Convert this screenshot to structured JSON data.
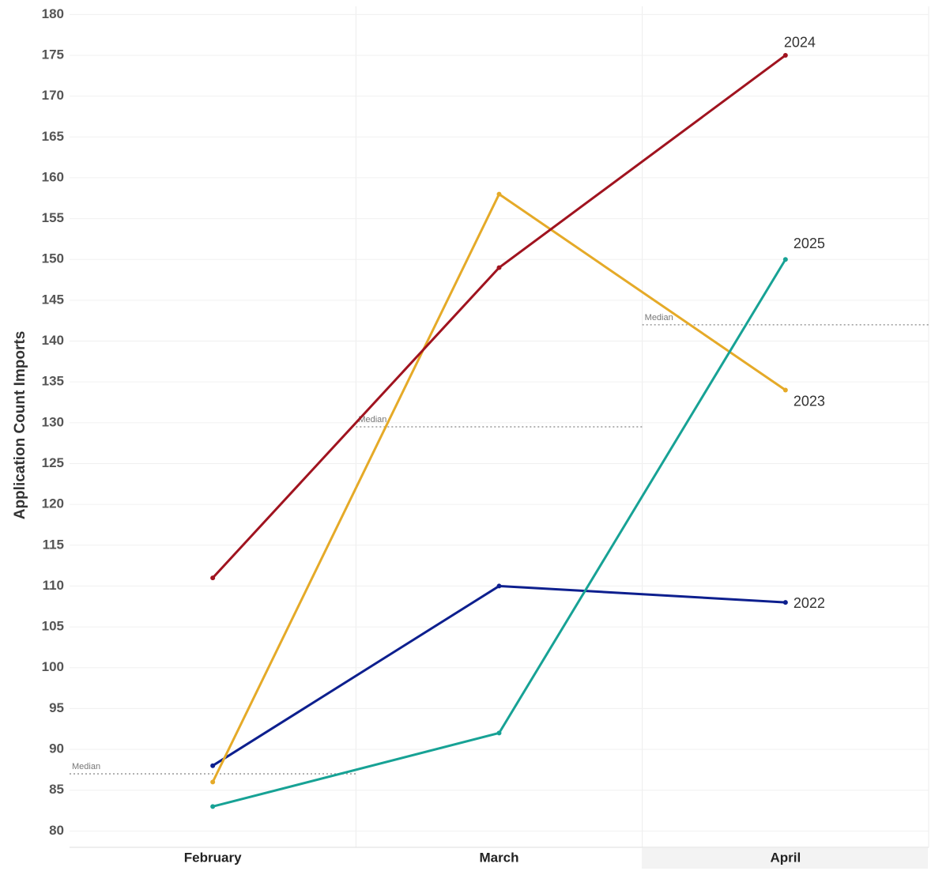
{
  "chart_data": {
    "type": "line",
    "y_label": "Application  Count  Imports",
    "categories": [
      "February",
      "March",
      "April"
    ],
    "series": [
      {
        "name": "2022",
        "color": "#0d1f8e",
        "values": [
          88,
          110,
          108
        ]
      },
      {
        "name": "2023",
        "color": "#e5aa28",
        "values": [
          86,
          158,
          134
        ]
      },
      {
        "name": "2024",
        "color": "#a0131f",
        "values": [
          111,
          149,
          175
        ]
      },
      {
        "name": "2025",
        "color": "#17a295",
        "values": [
          83,
          92,
          150
        ]
      }
    ],
    "median_label": "Median",
    "medians": [
      87,
      129.5,
      142
    ],
    "ylim": [
      78,
      181
    ],
    "yticks": [
      80,
      85,
      90,
      95,
      100,
      105,
      110,
      115,
      120,
      125,
      130,
      135,
      140,
      145,
      150,
      155,
      160,
      165,
      170,
      175,
      180
    ],
    "grid": true
  }
}
